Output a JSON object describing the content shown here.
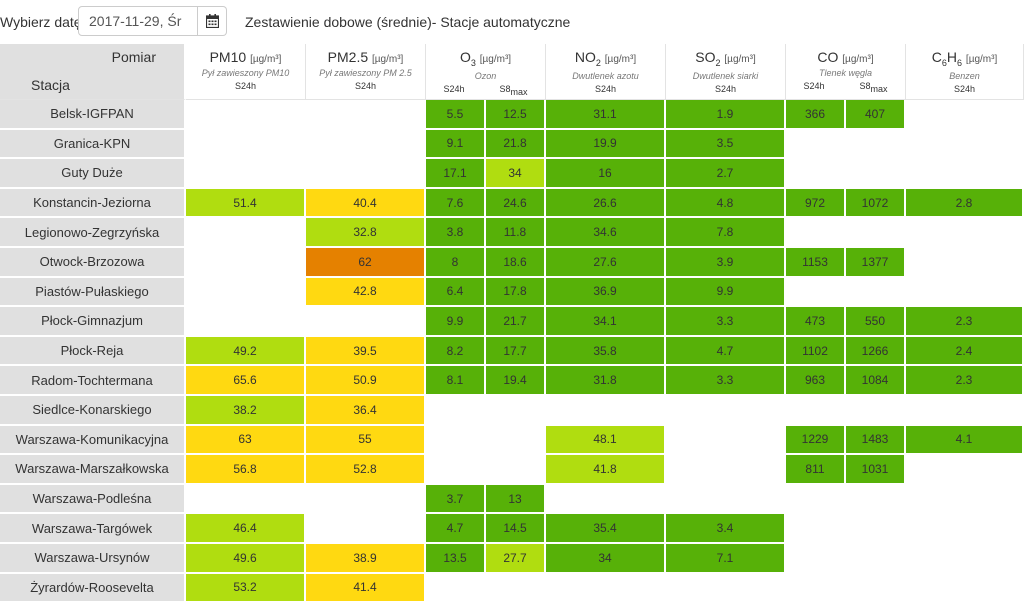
{
  "topbar": {
    "date_label": "Wybierz datę:",
    "date_value": "2017-11-29, Śr",
    "calendar_icon": "calendar-icon",
    "title": "Zestawienie dobowe (średnie)- Stacje automatyczne"
  },
  "header": {
    "pomiar": "Pomiar",
    "stacja": "Stacja",
    "unit": "[µg/m³]",
    "columns": [
      {
        "name": "PM10",
        "desc": "Pył zawieszony PM10",
        "periods": [
          "S24h"
        ]
      },
      {
        "name": "PM2.5",
        "desc": "Pył zawieszony PM 2.5",
        "periods": [
          "S24h"
        ]
      },
      {
        "name": "O3",
        "desc": "Ozon",
        "periods": [
          "S24h",
          "S8max"
        ]
      },
      {
        "name": "NO2",
        "desc": "Dwutlenek azotu",
        "periods": [
          "S24h"
        ]
      },
      {
        "name": "SO2",
        "desc": "Dwutlenek siarki",
        "periods": [
          "S24h"
        ]
      },
      {
        "name": "CO",
        "desc": "Tlenek węgla",
        "periods": [
          "S24h",
          "S8max"
        ]
      },
      {
        "name": "C6H6",
        "desc": "Benzen",
        "periods": [
          "S24h"
        ]
      }
    ]
  },
  "colors": {
    "very_good": "#57b108",
    "good": "#b0dd10",
    "moderate": "#ffd911",
    "sufficient": "#e58100"
  },
  "rows": [
    {
      "station": "Belsk-IGFPAN",
      "cells": [
        [
          "",
          ""
        ],
        [
          "",
          ""
        ],
        [
          "5.5",
          "g"
        ],
        [
          "12.5",
          "g"
        ],
        [
          "31.1",
          "g"
        ],
        [
          "1.9",
          "g"
        ],
        [
          "366",
          "g"
        ],
        [
          "407",
          "g"
        ],
        [
          "",
          ""
        ]
      ]
    },
    {
      "station": "Granica-KPN",
      "cells": [
        [
          "",
          ""
        ],
        [
          "",
          ""
        ],
        [
          "9.1",
          "g"
        ],
        [
          "21.8",
          "g"
        ],
        [
          "19.9",
          "g"
        ],
        [
          "3.5",
          "g"
        ],
        [
          "",
          ""
        ],
        [
          "",
          ""
        ],
        [
          "",
          ""
        ]
      ]
    },
    {
      "station": "Guty Duże",
      "cells": [
        [
          "",
          ""
        ],
        [
          "",
          ""
        ],
        [
          "17.1",
          "g"
        ],
        [
          "34",
          "lg"
        ],
        [
          "16",
          "g"
        ],
        [
          "2.7",
          "g"
        ],
        [
          "",
          ""
        ],
        [
          "",
          ""
        ],
        [
          "",
          ""
        ]
      ]
    },
    {
      "station": "Konstancin-Jeziorna",
      "cells": [
        [
          "51.4",
          "lg"
        ],
        [
          "40.4",
          "y"
        ],
        [
          "7.6",
          "g"
        ],
        [
          "24.6",
          "g"
        ],
        [
          "26.6",
          "g"
        ],
        [
          "4.8",
          "g"
        ],
        [
          "972",
          "g"
        ],
        [
          "1072",
          "g"
        ],
        [
          "2.8",
          "g"
        ]
      ]
    },
    {
      "station": "Legionowo-Zegrzyńska",
      "cells": [
        [
          "",
          ""
        ],
        [
          "32.8",
          "lg"
        ],
        [
          "3.8",
          "g"
        ],
        [
          "11.8",
          "g"
        ],
        [
          "34.6",
          "g"
        ],
        [
          "7.8",
          "g"
        ],
        [
          "",
          ""
        ],
        [
          "",
          ""
        ],
        [
          "",
          ""
        ]
      ]
    },
    {
      "station": "Otwock-Brzozowa",
      "cells": [
        [
          "",
          ""
        ],
        [
          "62",
          "o"
        ],
        [
          "8",
          "g"
        ],
        [
          "18.6",
          "g"
        ],
        [
          "27.6",
          "g"
        ],
        [
          "3.9",
          "g"
        ],
        [
          "1153",
          "g"
        ],
        [
          "1377",
          "g"
        ],
        [
          "",
          ""
        ]
      ]
    },
    {
      "station": "Piastów-Pułaskiego",
      "cells": [
        [
          "",
          ""
        ],
        [
          "42.8",
          "y"
        ],
        [
          "6.4",
          "g"
        ],
        [
          "17.8",
          "g"
        ],
        [
          "36.9",
          "g"
        ],
        [
          "9.9",
          "g"
        ],
        [
          "",
          ""
        ],
        [
          "",
          ""
        ],
        [
          "",
          ""
        ]
      ]
    },
    {
      "station": "Płock-Gimnazjum",
      "cells": [
        [
          "",
          ""
        ],
        [
          "",
          ""
        ],
        [
          "9.9",
          "g"
        ],
        [
          "21.7",
          "g"
        ],
        [
          "34.1",
          "g"
        ],
        [
          "3.3",
          "g"
        ],
        [
          "473",
          "g"
        ],
        [
          "550",
          "g"
        ],
        [
          "2.3",
          "g"
        ]
      ]
    },
    {
      "station": "Płock-Reja",
      "cells": [
        [
          "49.2",
          "lg"
        ],
        [
          "39.5",
          "y"
        ],
        [
          "8.2",
          "g"
        ],
        [
          "17.7",
          "g"
        ],
        [
          "35.8",
          "g"
        ],
        [
          "4.7",
          "g"
        ],
        [
          "1102",
          "g"
        ],
        [
          "1266",
          "g"
        ],
        [
          "2.4",
          "g"
        ]
      ]
    },
    {
      "station": "Radom-Tochtermana",
      "cells": [
        [
          "65.6",
          "y"
        ],
        [
          "50.9",
          "y"
        ],
        [
          "8.1",
          "g"
        ],
        [
          "19.4",
          "g"
        ],
        [
          "31.8",
          "g"
        ],
        [
          "3.3",
          "g"
        ],
        [
          "963",
          "g"
        ],
        [
          "1084",
          "g"
        ],
        [
          "2.3",
          "g"
        ]
      ]
    },
    {
      "station": "Siedlce-Konarskiego",
      "cells": [
        [
          "38.2",
          "lg"
        ],
        [
          "36.4",
          "y"
        ],
        [
          "",
          ""
        ],
        [
          "",
          ""
        ],
        [
          "",
          ""
        ],
        [
          "",
          ""
        ],
        [
          "",
          ""
        ],
        [
          "",
          ""
        ],
        [
          "",
          ""
        ]
      ]
    },
    {
      "station": "Warszawa-Komunikacyjna",
      "cells": [
        [
          "63",
          "y"
        ],
        [
          "55",
          "y"
        ],
        [
          "",
          ""
        ],
        [
          "",
          ""
        ],
        [
          "48.1",
          "lg"
        ],
        [
          "",
          ""
        ],
        [
          "1229",
          "g"
        ],
        [
          "1483",
          "g"
        ],
        [
          "4.1",
          "g"
        ]
      ]
    },
    {
      "station": "Warszawa-Marszałkowska",
      "cells": [
        [
          "56.8",
          "y"
        ],
        [
          "52.8",
          "y"
        ],
        [
          "",
          ""
        ],
        [
          "",
          ""
        ],
        [
          "41.8",
          "lg"
        ],
        [
          "",
          ""
        ],
        [
          "811",
          "g"
        ],
        [
          "1031",
          "g"
        ],
        [
          "",
          ""
        ]
      ]
    },
    {
      "station": "Warszawa-Podleśna",
      "cells": [
        [
          "",
          ""
        ],
        [
          "",
          ""
        ],
        [
          "3.7",
          "g"
        ],
        [
          "13",
          "g"
        ],
        [
          "",
          ""
        ],
        [
          "",
          ""
        ],
        [
          "",
          ""
        ],
        [
          "",
          ""
        ],
        [
          "",
          ""
        ]
      ]
    },
    {
      "station": "Warszawa-Targówek",
      "cells": [
        [
          "46.4",
          "lg"
        ],
        [
          "",
          ""
        ],
        [
          "4.7",
          "g"
        ],
        [
          "14.5",
          "g"
        ],
        [
          "35.4",
          "g"
        ],
        [
          "3.4",
          "g"
        ],
        [
          "",
          ""
        ],
        [
          "",
          ""
        ],
        [
          "",
          ""
        ]
      ]
    },
    {
      "station": "Warszawa-Ursynów",
      "cells": [
        [
          "49.6",
          "lg"
        ],
        [
          "38.9",
          "y"
        ],
        [
          "13.5",
          "g"
        ],
        [
          "27.7",
          "lg"
        ],
        [
          "34",
          "g"
        ],
        [
          "7.1",
          "g"
        ],
        [
          "",
          ""
        ],
        [
          "",
          ""
        ],
        [
          "",
          ""
        ]
      ]
    },
    {
      "station": "Żyrardów-Roosevelta",
      "cells": [
        [
          "53.2",
          "lg"
        ],
        [
          "41.4",
          "y"
        ],
        [
          "",
          ""
        ],
        [
          "",
          ""
        ],
        [
          "",
          ""
        ],
        [
          "",
          ""
        ],
        [
          "",
          ""
        ],
        [
          "",
          ""
        ],
        [
          "",
          ""
        ]
      ]
    }
  ]
}
